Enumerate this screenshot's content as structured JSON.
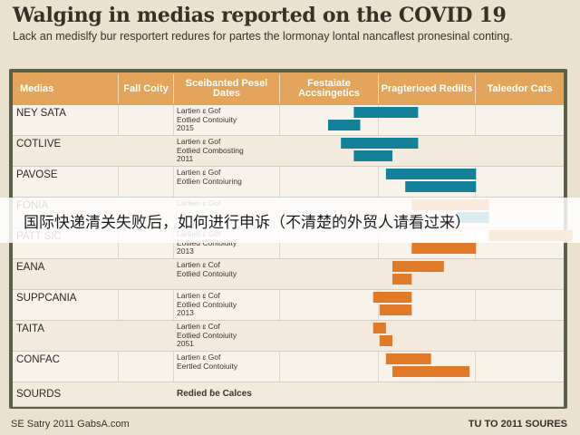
{
  "title": "Walging in medias reported on the COVID 19",
  "subtitle": "Lack an medislfy bur resportert redures for partes the lormonay lontal nancaflest pronesinal conting.",
  "colors": {
    "header": "#e3a45c",
    "frame": "#5b6048",
    "teal": "#138199",
    "teal_light": "#7cc8dc",
    "orange": "#e07a29",
    "peach": "#f7cdb0"
  },
  "columns": [
    "Medias",
    "Fall Coity",
    "Sceibanted Pesel Dates",
    "Festaiate Accsingetics",
    "Pragterioed Redilts",
    "Taleedor Cats"
  ],
  "rows": [
    {
      "label": "NEY SATA",
      "note": "Lartien ɛ Gof\nEotlied Contoiuity\n2015"
    },
    {
      "label": "COTLIVE",
      "note": "Lartien ɛ Gof\nEotlied Combosting\n2011"
    },
    {
      "label": "PAVOSE",
      "note": "Lartien ɛ Gof\nEotlien Contoiuring"
    },
    {
      "label": "FONIA",
      "note": "Lartien ɛ Gof"
    },
    {
      "label": "PATT SIC",
      "note": "Lartien ɛ Gof\nEotlied Contoiuity\n2013"
    },
    {
      "label": "EANA",
      "note": "Lartien ɛ Cof\nEotlied Contoiuity"
    },
    {
      "label": "SUPPCANIA",
      "note": "Lartien ɛ Cof\nEotlied Contoiuity\n2013"
    },
    {
      "label": "TAITA",
      "note": "Lartien ɛ Cof\nEotlied Contoiuity\n2051"
    },
    {
      "label": "CONFAC",
      "note": "Lartien ɛ Gof\nEertled Contoiuity"
    },
    {
      "label": "SOURDS",
      "note": "Redied ɓe Calces"
    }
  ],
  "chart_data": {
    "type": "bar",
    "title": "Walging in medias reported on the COVID 19",
    "categories": [
      "NEY SATA",
      "COTLIVE",
      "PAVOSE",
      "FONIA",
      "PATT SIC",
      "EANA",
      "SUPPCANIA",
      "TAITA",
      "CONFAC"
    ],
    "series": [
      {
        "color": "#138199",
        "ranges": [
          [
            4.4,
            5.4
          ],
          [
            4.2,
            5.4
          ],
          [
            4.9,
            6.3
          ],
          [
            5.5,
            6.2
          ],
          [
            null,
            null
          ],
          [
            null,
            null
          ],
          [
            null,
            null
          ],
          [
            null,
            null
          ],
          [
            null,
            null
          ]
        ]
      },
      {
        "color": "#138199",
        "ranges": [
          [
            4.0,
            4.5
          ],
          [
            4.4,
            5.0
          ],
          [
            5.2,
            6.3
          ],
          [
            6.0,
            6.5
          ],
          [
            null,
            null
          ],
          [
            null,
            null
          ],
          [
            null,
            null
          ],
          [
            null,
            null
          ],
          [
            null,
            null
          ]
        ]
      },
      {
        "color": "#e07a29",
        "ranges": [
          [
            null,
            null
          ],
          [
            null,
            null
          ],
          [
            null,
            null
          ],
          [
            5.3,
            6.5
          ],
          [
            6.5,
            7.8
          ],
          [
            5.0,
            5.8
          ],
          [
            4.7,
            5.3
          ],
          [
            4.7,
            4.9
          ],
          [
            4.9,
            5.6
          ]
        ]
      },
      {
        "color": "#e07a29",
        "ranges": [
          [
            null,
            null
          ],
          [
            null,
            null
          ],
          [
            null,
            null
          ],
          [
            null,
            null
          ],
          [
            5.3,
            6.3
          ],
          [
            5.0,
            5.3
          ],
          [
            4.8,
            5.3
          ],
          [
            4.8,
            5.0
          ],
          [
            5.0,
            6.2
          ]
        ]
      }
    ],
    "xlim": [
      2,
      8
    ],
    "grid": true
  },
  "footer": {
    "left": "SE Satry 2011 GabsA.com",
    "right": "TU TO 2011 SOURES"
  },
  "overlay_banner": "国际快递清关失败后，如何进行申诉（不清楚的外贸人请看过来）"
}
